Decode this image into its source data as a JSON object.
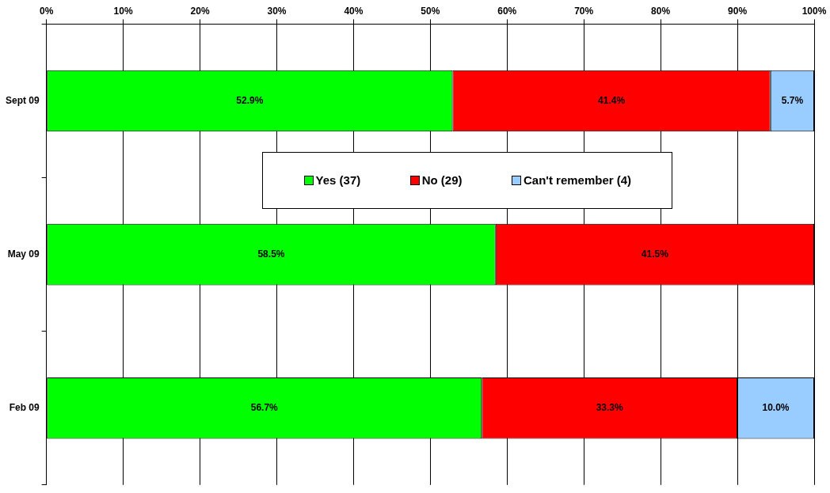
{
  "chart_data": {
    "type": "bar",
    "orientation": "horizontal",
    "stacked": true,
    "categories": [
      "Sept 09",
      "May 09",
      "Feb 09"
    ],
    "series": [
      {
        "name": "Yes (37)",
        "color": "#00ff00",
        "values": [
          52.9,
          58.5,
          56.7
        ],
        "value_labels": [
          "52.9%",
          "58.5%",
          "56.7%"
        ]
      },
      {
        "name": "No (29)",
        "color": "#ff0000",
        "values": [
          41.4,
          41.5,
          33.3
        ],
        "value_labels": [
          "41.4%",
          "41.5%",
          "33.3%"
        ]
      },
      {
        "name": "Can't remember (4)",
        "color": "#99ccff",
        "values": [
          5.7,
          null,
          10.0
        ],
        "value_labels": [
          "5.7%",
          null,
          "10.0%"
        ]
      }
    ],
    "xlim": [
      0,
      100
    ],
    "xticks": [
      {
        "value": 0,
        "label": "0%"
      },
      {
        "value": 10,
        "label": "10%"
      },
      {
        "value": 20,
        "label": "20%"
      },
      {
        "value": 30,
        "label": "30%"
      },
      {
        "value": 40,
        "label": "40%"
      },
      {
        "value": 50,
        "label": "50%"
      },
      {
        "value": 60,
        "label": "60%"
      },
      {
        "value": 70,
        "label": "70%"
      },
      {
        "value": 80,
        "label": "80%"
      },
      {
        "value": 90,
        "label": "90%"
      },
      {
        "value": 100,
        "label": "100%"
      }
    ],
    "grid": "x",
    "legend": "center"
  }
}
